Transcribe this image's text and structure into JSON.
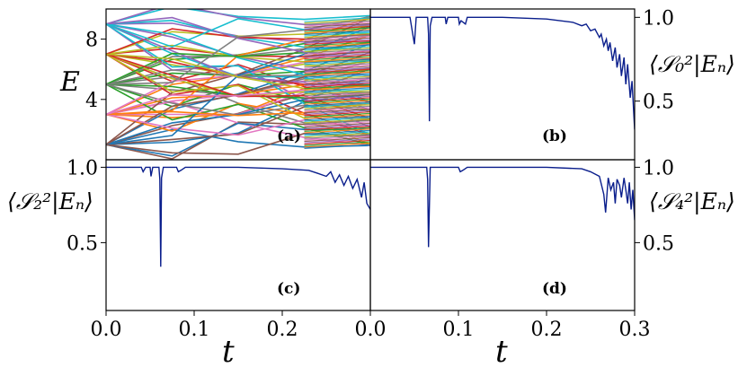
{
  "chart_data": [
    {
      "panel": "(a)",
      "type": "line",
      "xlabel": "",
      "ylabel": "E",
      "xlim": [
        0,
        0.1
      ],
      "ylim": [
        0,
        10
      ],
      "xticks": [],
      "yticks": [
        4,
        8
      ],
      "yticks_side": "left",
      "description_values": {
        "levels_at_t0": [
          1,
          3,
          5,
          7,
          9
        ],
        "levels_at_t_end": [
          1.0,
          1.6,
          2.1,
          2.7,
          3.2,
          3.8,
          4.4,
          4.9,
          5.5,
          6.1,
          6.6,
          7.2,
          7.8,
          8.3,
          8.9,
          9.5
        ],
        "crossing_times": [
          0.025,
          0.05,
          0.075
        ]
      },
      "grid": false
    },
    {
      "panel": "(b)",
      "type": "line",
      "xlabel": "",
      "ylabel": "⟨S₀²|Eₙ⟩",
      "ylabel_side": "right",
      "xlim": [
        0,
        0.3
      ],
      "ylim": [
        0.15,
        1.05
      ],
      "yticks": [
        0.5,
        1.0
      ],
      "yticks_side": "right",
      "color": "#0a1e8c",
      "series": [
        {
          "x": [
            0,
            0.045,
            0.05,
            0.052,
            0.055,
            0.065,
            0.066,
            0.067,
            0.068,
            0.07,
            0.085,
            0.086,
            0.088,
            0.09,
            0.1,
            0.101,
            0.103,
            0.108,
            0.11,
            0.15,
            0.2,
            0.23,
            0.24,
            0.245,
            0.25,
            0.255,
            0.26,
            0.262,
            0.265,
            0.268,
            0.27,
            0.272,
            0.275,
            0.278,
            0.28,
            0.283,
            0.285,
            0.288,
            0.29,
            0.292,
            0.295,
            0.297,
            0.3
          ],
          "y": [
            1.0,
            1.0,
            0.84,
            1.0,
            1.0,
            1.0,
            0.9,
            0.38,
            0.95,
            1.0,
            1.0,
            0.96,
            1.0,
            1.0,
            1.0,
            0.96,
            0.98,
            0.96,
            1.0,
            1.0,
            0.99,
            0.97,
            0.95,
            0.96,
            0.92,
            0.93,
            0.88,
            0.9,
            0.83,
            0.87,
            0.8,
            0.85,
            0.74,
            0.82,
            0.7,
            0.78,
            0.65,
            0.76,
            0.6,
            0.72,
            0.52,
            0.62,
            0.33
          ]
        }
      ],
      "grid": false
    },
    {
      "panel": "(c)",
      "type": "line",
      "xlabel": "t",
      "ylabel": "⟨S₂²|Eₙ⟩",
      "ylabel_side": "left",
      "xlim": [
        0,
        0.1
      ],
      "ylim": [
        0.05,
        1.05
      ],
      "xticks": [
        0.0,
        0.1,
        0.2
      ],
      "xtick_labels": [
        "0.0",
        "0.1",
        "0.2"
      ],
      "yticks": [
        0.5,
        1.0
      ],
      "yticks_side": "left",
      "color": "#0a1e8c",
      "series": [
        {
          "x": [
            0,
            0.04,
            0.042,
            0.045,
            0.05,
            0.051,
            0.053,
            0.06,
            0.061,
            0.062,
            0.063,
            0.065,
            0.08,
            0.082,
            0.085,
            0.09,
            0.1
          ],
          "y": [
            1.0,
            1.0,
            0.97,
            1.0,
            1.0,
            0.94,
            1.0,
            1.0,
            0.92,
            0.34,
            0.93,
            1.0,
            1.0,
            0.97,
            0.98,
            1.0,
            1.0
          ],
          "note_x_scaled": [
            0,
            0.1
          ]
        }
      ],
      "grid": false
    },
    {
      "panel": "(d)",
      "type": "line",
      "xlabel": "t",
      "ylabel": "⟨S₄²|Eₙ⟩",
      "ylabel_side": "right",
      "xlim": [
        0,
        0.3
      ],
      "ylim": [
        0.05,
        1.05
      ],
      "xticks": [
        0.0,
        0.1,
        0.2,
        0.3
      ],
      "xtick_labels": [
        "0.0",
        "0.1",
        "0.2",
        "0.3"
      ],
      "yticks": [
        0.5,
        1.0
      ],
      "yticks_side": "right",
      "color": "#0a1e8c",
      "series": [
        {
          "x": [
            0,
            0.064,
            0.065,
            0.066,
            0.068,
            0.1,
            0.102,
            0.105,
            0.11,
            0.2,
            0.24,
            0.25,
            0.26,
            0.265,
            0.267,
            0.27,
            0.273,
            0.276,
            0.278,
            0.28,
            0.283,
            0.285,
            0.288,
            0.29,
            0.292,
            0.294,
            0.296,
            0.298,
            0.3
          ],
          "y": [
            1.0,
            1.0,
            0.92,
            0.47,
            1.0,
            1.0,
            0.97,
            0.98,
            1.0,
            1.0,
            0.99,
            0.97,
            0.94,
            0.82,
            0.7,
            0.93,
            0.85,
            0.9,
            0.76,
            0.92,
            0.88,
            0.8,
            0.93,
            0.85,
            0.76,
            0.9,
            0.72,
            0.85,
            0.65
          ]
        }
      ],
      "grid": false
    }
  ],
  "axes_labels": {
    "E": "E",
    "t": "t",
    "s0": "⟨𝒮₀²|Eₙ⟩",
    "s2": "⟨𝒮₂²|Eₙ⟩",
    "s4": "⟨𝒮₄²|Eₙ⟩"
  },
  "panel_tags": {
    "a": "(a)",
    "b": "(b)",
    "c": "(c)",
    "d": "(d)"
  },
  "colors": {
    "trace": "#0a1e8c",
    "spectrum": [
      "#1f77b4",
      "#ff7f0e",
      "#2ca02c",
      "#d62728",
      "#9467bd",
      "#8c564b",
      "#e377c2",
      "#7f7f7f",
      "#bcbd22",
      "#17becf"
    ]
  },
  "tick_labels": {
    "a_y": [
      "4",
      "8"
    ],
    "b_y": [
      "0.5",
      "1.0"
    ],
    "c_y": [
      "0.5",
      "1.0"
    ],
    "d_y": [
      "0.5",
      "1.0"
    ],
    "c_x": [
      "0.0",
      "0.1",
      "0.2"
    ],
    "d_x": [
      "0.0",
      "0.1",
      "0.2",
      "0.3"
    ]
  }
}
